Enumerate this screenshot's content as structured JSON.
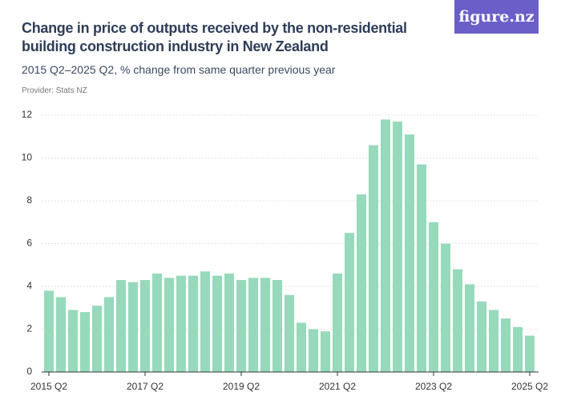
{
  "logo": "figure.nz",
  "chart_data": {
    "type": "bar",
    "title": "Change in price of outputs received by the non-residential building construction industry in New Zealand",
    "subtitle": "2015 Q2–2025 Q2, % change from same quarter previous year",
    "provider": "Provider: Stats NZ",
    "categories": [
      "2015 Q2",
      null,
      null,
      null,
      null,
      null,
      null,
      null,
      "2017 Q2",
      null,
      null,
      null,
      null,
      null,
      null,
      null,
      "2019 Q2",
      null,
      null,
      null,
      null,
      null,
      null,
      null,
      "2021 Q2",
      null,
      null,
      null,
      null,
      null,
      null,
      null,
      "2023 Q2",
      null,
      null,
      null,
      null,
      null,
      null,
      null,
      "2025 Q2"
    ],
    "values": [
      3.8,
      3.5,
      2.9,
      2.8,
      3.1,
      3.5,
      4.3,
      4.2,
      4.3,
      4.6,
      4.4,
      4.5,
      4.5,
      4.7,
      4.5,
      4.6,
      4.3,
      4.4,
      4.4,
      4.3,
      3.6,
      2.3,
      2.0,
      1.9,
      4.6,
      6.5,
      8.3,
      10.6,
      11.8,
      11.7,
      11.1,
      9.7,
      7.0,
      6.0,
      4.8,
      4.1,
      3.3,
      2.9,
      2.5,
      2.1,
      1.7
    ],
    "color": "#97d9bb",
    "ylim": [
      0,
      12
    ],
    "yticks": [
      0,
      2,
      4,
      6,
      8,
      10,
      12
    ],
    "grid": true
  }
}
